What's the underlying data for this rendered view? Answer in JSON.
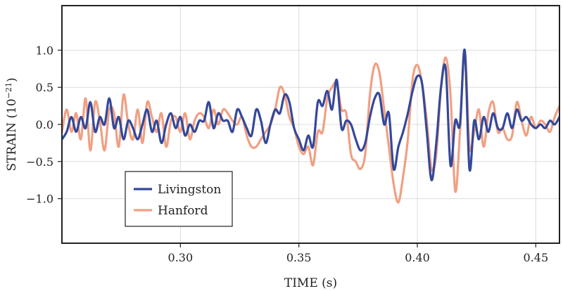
{
  "chart_data": {
    "type": "line",
    "title": "",
    "xlabel": "TIME (s)",
    "ylabel": "STRAIN (10",
    "ylabel_exponent": "−21",
    "ylabel_close": ")",
    "xlim": [
      0.25,
      0.46
    ],
    "ylim": [
      -1.6,
      1.6
    ],
    "xticks": [
      0.3,
      0.35,
      0.4,
      0.45
    ],
    "xtick_labels": [
      "0.30",
      "0.35",
      "0.40",
      "0.45"
    ],
    "yticks": [
      1.0,
      0.5,
      0.0,
      -0.5,
      -1.0
    ],
    "ytick_labels": [
      "1.0",
      "0.5",
      "0.0",
      "−0.5",
      "−1.0"
    ],
    "grid": true,
    "legend_position": "bottom-left",
    "series": [
      {
        "name": "Livingston",
        "color": "#34489a",
        "x": [
          0.25,
          0.252,
          0.254,
          0.256,
          0.258,
          0.26,
          0.262,
          0.264,
          0.266,
          0.268,
          0.27,
          0.272,
          0.274,
          0.276,
          0.278,
          0.28,
          0.282,
          0.284,
          0.286,
          0.288,
          0.29,
          0.292,
          0.294,
          0.296,
          0.298,
          0.3,
          0.302,
          0.304,
          0.306,
          0.308,
          0.31,
          0.312,
          0.314,
          0.316,
          0.318,
          0.32,
          0.322,
          0.324,
          0.326,
          0.328,
          0.33,
          0.332,
          0.334,
          0.336,
          0.338,
          0.34,
          0.342,
          0.344,
          0.346,
          0.348,
          0.35,
          0.352,
          0.354,
          0.356,
          0.358,
          0.36,
          0.362,
          0.364,
          0.366,
          0.368,
          0.37,
          0.372,
          0.374,
          0.376,
          0.378,
          0.38,
          0.382,
          0.384,
          0.386,
          0.388,
          0.39,
          0.392,
          0.394,
          0.396,
          0.398,
          0.4,
          0.402,
          0.404,
          0.406,
          0.408,
          0.41,
          0.412,
          0.414,
          0.416,
          0.418,
          0.42,
          0.422,
          0.424,
          0.426,
          0.428,
          0.43,
          0.432,
          0.434,
          0.436,
          0.438,
          0.44,
          0.442,
          0.444,
          0.446,
          0.448,
          0.45,
          0.452,
          0.454,
          0.456,
          0.458,
          0.46
        ],
        "y": [
          -0.2,
          -0.1,
          0.1,
          -0.1,
          0.1,
          -0.05,
          0.3,
          -0.1,
          0.1,
          0.0,
          0.35,
          -0.05,
          0.1,
          -0.2,
          0.05,
          -0.05,
          -0.2,
          0.0,
          0.2,
          -0.1,
          0.05,
          -0.25,
          0.0,
          0.15,
          -0.05,
          0.1,
          -0.15,
          0.0,
          -0.1,
          0.05,
          0.05,
          0.3,
          -0.05,
          0.15,
          0.05,
          0.05,
          -0.1,
          0.2,
          0.1,
          -0.05,
          -0.15,
          0.2,
          0.05,
          -0.25,
          0.0,
          0.2,
          0.15,
          0.4,
          0.3,
          -0.05,
          -0.2,
          -0.35,
          -0.15,
          -0.3,
          0.3,
          0.25,
          0.45,
          0.2,
          0.6,
          -0.05,
          0.05,
          0.0,
          -0.2,
          -0.35,
          -0.25,
          0.1,
          0.35,
          0.4,
          0.0,
          0.15,
          -0.6,
          -0.3,
          -0.1,
          0.15,
          0.45,
          0.65,
          0.55,
          -0.1,
          -0.75,
          -0.25,
          0.5,
          0.75,
          -0.55,
          0.05,
          0.0,
          1.0,
          -0.6,
          0.05,
          -0.2,
          0.1,
          -0.1,
          0.15,
          -0.05,
          -0.05,
          0.15,
          -0.05,
          0.2,
          0.05,
          0.1,
          0.0,
          -0.05,
          0.0,
          -0.05,
          0.05,
          0.0,
          0.1
        ],
        "line_width": 3.2
      },
      {
        "name": "Hanford",
        "color": "#f0a083",
        "x": [
          0.25,
          0.252,
          0.254,
          0.256,
          0.258,
          0.26,
          0.262,
          0.264,
          0.266,
          0.268,
          0.27,
          0.272,
          0.274,
          0.276,
          0.278,
          0.28,
          0.282,
          0.284,
          0.286,
          0.288,
          0.29,
          0.292,
          0.294,
          0.296,
          0.298,
          0.3,
          0.302,
          0.304,
          0.306,
          0.308,
          0.31,
          0.312,
          0.314,
          0.316,
          0.318,
          0.32,
          0.322,
          0.324,
          0.326,
          0.328,
          0.33,
          0.332,
          0.334,
          0.336,
          0.338,
          0.34,
          0.342,
          0.344,
          0.346,
          0.348,
          0.35,
          0.352,
          0.354,
          0.356,
          0.358,
          0.36,
          0.362,
          0.364,
          0.366,
          0.368,
          0.37,
          0.372,
          0.374,
          0.376,
          0.378,
          0.38,
          0.382,
          0.384,
          0.386,
          0.388,
          0.39,
          0.392,
          0.394,
          0.396,
          0.398,
          0.4,
          0.402,
          0.404,
          0.406,
          0.408,
          0.41,
          0.412,
          0.414,
          0.416,
          0.418,
          0.42,
          0.422,
          0.424,
          0.426,
          0.428,
          0.43,
          0.432,
          0.434,
          0.436,
          0.438,
          0.44,
          0.442,
          0.444,
          0.446,
          0.448,
          0.45,
          0.452,
          0.454,
          0.456,
          0.458,
          0.46
        ],
        "y": [
          -0.1,
          0.2,
          -0.1,
          0.15,
          -0.2,
          0.35,
          -0.35,
          0.3,
          0.05,
          -0.35,
          0.2,
          0.15,
          -0.3,
          0.4,
          0.0,
          -0.2,
          0.2,
          -0.25,
          0.3,
          0.1,
          -0.1,
          0.15,
          -0.3,
          0.05,
          0.1,
          -0.1,
          0.15,
          -0.2,
          0.05,
          0.15,
          0.1,
          -0.05,
          0.2,
          0.0,
          0.2,
          0.15,
          0.05,
          0.0,
          0.1,
          -0.15,
          -0.3,
          -0.3,
          -0.2,
          -0.1,
          0.0,
          0.2,
          0.5,
          0.4,
          0.1,
          -0.05,
          -0.3,
          -0.4,
          -0.3,
          -0.55,
          -0.1,
          -0.1,
          0.35,
          0.5,
          0.55,
          0.2,
          0.15,
          -0.4,
          -0.5,
          -0.6,
          -0.4,
          0.4,
          0.8,
          0.7,
          0.2,
          -0.3,
          -0.8,
          -1.05,
          -0.7,
          -0.2,
          0.6,
          0.8,
          0.55,
          0.05,
          -0.6,
          -0.4,
          0.5,
          0.9,
          0.4,
          -0.9,
          -0.1,
          1.0,
          -0.3,
          -0.1,
          0.2,
          -0.3,
          0.15,
          0.3,
          -0.1,
          -0.05,
          -0.2,
          -0.15,
          0.3,
          0.05,
          -0.15,
          0.1,
          -0.05,
          0.05,
          0.0,
          -0.1,
          0.1,
          0.25
        ],
        "line_width": 3.2
      }
    ]
  }
}
